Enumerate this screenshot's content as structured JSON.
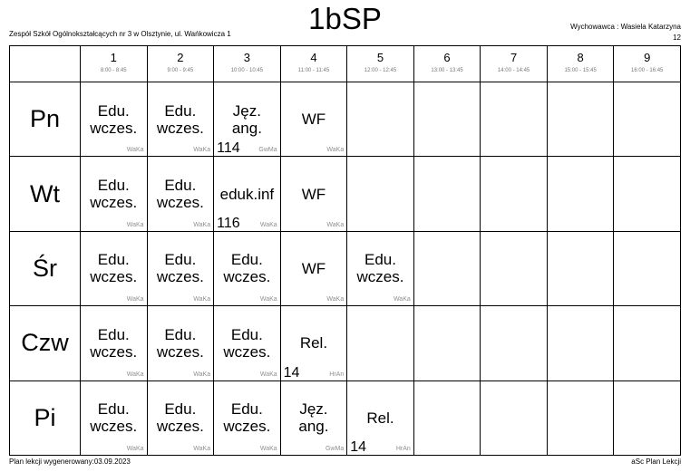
{
  "page": {
    "title": "1bSP",
    "school_line": "Zespół Szkół Ogólnokształcących nr 3 w Olsztynie, ul. Wańkowicza 1",
    "homeroom_line": "Wychowawca : Wasiela Katarzyna",
    "page_number": "12",
    "footer_left": "Plan lekcji wygenerowany:03.09.2023",
    "footer_right": "aSc Plan Lekcji"
  },
  "periods": [
    {
      "number": "1",
      "time": "8:00 - 8:45"
    },
    {
      "number": "2",
      "time": "9:00 - 9:45"
    },
    {
      "number": "3",
      "time": "10:00 - 10:45"
    },
    {
      "number": "4",
      "time": "11:00 - 11:45"
    },
    {
      "number": "5",
      "time": "12:00 - 12:45"
    },
    {
      "number": "6",
      "time": "13:00 - 13:45"
    },
    {
      "number": "7",
      "time": "14:00 - 14:45"
    },
    {
      "number": "8",
      "time": "15:00 - 15:45"
    },
    {
      "number": "9",
      "time": "16:00 - 16:45"
    }
  ],
  "days": [
    {
      "label": "Pn",
      "lessons": [
        {
          "subject": "Edu. wczes.",
          "room": "",
          "teacher": "WaKa"
        },
        {
          "subject": "Edu. wczes.",
          "room": "",
          "teacher": "WaKa"
        },
        {
          "subject": "Jęz. ang.",
          "room": "114",
          "teacher": "GwMa"
        },
        {
          "subject": "WF",
          "room": "",
          "teacher": "WaKa"
        },
        {},
        {},
        {},
        {},
        {}
      ]
    },
    {
      "label": "Wt",
      "lessons": [
        {
          "subject": "Edu. wczes.",
          "room": "",
          "teacher": "WaKa"
        },
        {
          "subject": "Edu. wczes.",
          "room": "",
          "teacher": "WaKa"
        },
        {
          "subject": "eduk.inf",
          "room": "116",
          "teacher": "WaKa"
        },
        {
          "subject": "WF",
          "room": "",
          "teacher": "WaKa"
        },
        {},
        {},
        {},
        {},
        {}
      ]
    },
    {
      "label": "Śr",
      "lessons": [
        {
          "subject": "Edu. wczes.",
          "room": "",
          "teacher": "WaKa"
        },
        {
          "subject": "Edu. wczes.",
          "room": "",
          "teacher": "WaKa"
        },
        {
          "subject": "Edu. wczes.",
          "room": "",
          "teacher": "WaKa"
        },
        {
          "subject": "WF",
          "room": "",
          "teacher": "WaKa"
        },
        {
          "subject": "Edu. wczes.",
          "room": "",
          "teacher": "WaKa"
        },
        {},
        {},
        {},
        {}
      ]
    },
    {
      "label": "Czw",
      "lessons": [
        {
          "subject": "Edu. wczes.",
          "room": "",
          "teacher": "WaKa"
        },
        {
          "subject": "Edu. wczes.",
          "room": "",
          "teacher": "WaKa"
        },
        {
          "subject": "Edu. wczes.",
          "room": "",
          "teacher": "WaKa"
        },
        {
          "subject": "Rel.",
          "room": "14",
          "teacher": "HrAn"
        },
        {},
        {},
        {},
        {},
        {}
      ]
    },
    {
      "label": "Pi",
      "lessons": [
        {
          "subject": "Edu. wczes.",
          "room": "",
          "teacher": "WaKa"
        },
        {
          "subject": "Edu. wczes.",
          "room": "",
          "teacher": "WaKa"
        },
        {
          "subject": "Edu. wczes.",
          "room": "",
          "teacher": "WaKa"
        },
        {
          "subject": "Jęz. ang.",
          "room": "",
          "teacher": "GwMa"
        },
        {
          "subject": "Rel.",
          "room": "14",
          "teacher": "HrAn"
        },
        {},
        {},
        {},
        {}
      ]
    }
  ]
}
